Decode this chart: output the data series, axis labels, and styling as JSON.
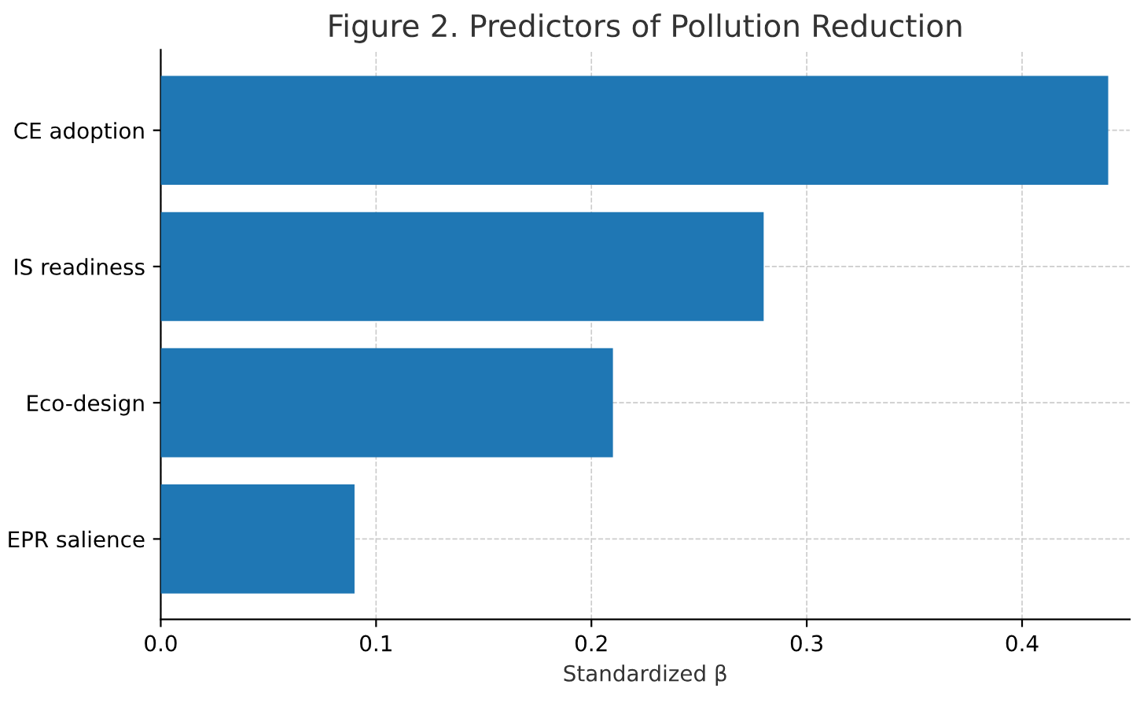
{
  "chart_data": {
    "type": "bar",
    "orientation": "horizontal",
    "title": "Figure 2. Predictors of Pollution Reduction",
    "xlabel": "Standardized β",
    "categories": [
      "CE adoption",
      "IS readiness",
      "Eco-design",
      "EPR salience"
    ],
    "values": [
      0.44,
      0.28,
      0.21,
      0.09
    ],
    "color": "#1f77b4",
    "xlim": [
      0,
      0.45
    ],
    "xticks": [
      {
        "value": 0,
        "label": "0.0"
      },
      0.1,
      0.2,
      0.3,
      0.4
    ],
    "grid": true
  }
}
